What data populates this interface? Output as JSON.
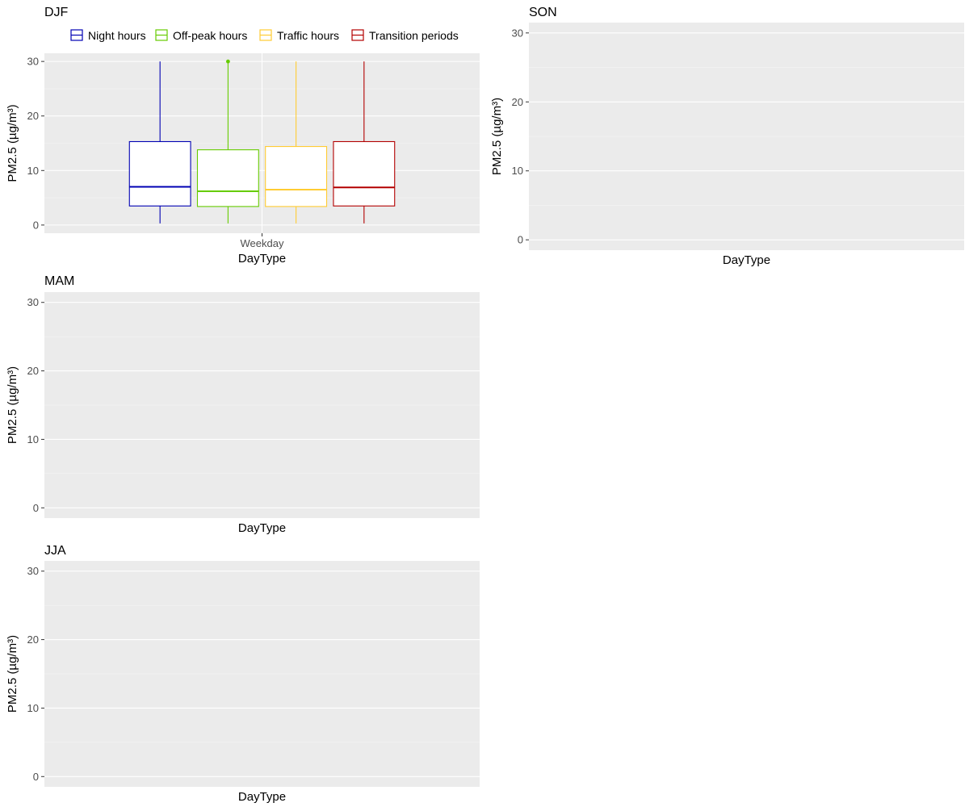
{
  "chart_data": {
    "type": "box",
    "ylabel": "PM2.5 (µg/m³)",
    "xlabel": "DayType",
    "legend": {
      "position": "top",
      "entries": [
        {
          "name": "Night hours",
          "color": "#0000b3"
        },
        {
          "name": "Off-peak hours",
          "color": "#66cc00"
        },
        {
          "name": "Traffic hours",
          "color": "#ffcc33"
        },
        {
          "name": "Transition periods",
          "color": "#b30000"
        }
      ]
    },
    "ylim": [
      -1.5,
      31.5
    ],
    "yticks": [
      0,
      10,
      20,
      30
    ],
    "grid": true,
    "panels": [
      {
        "title": "DJF",
        "categories": [
          "Weekday"
        ],
        "series": [
          {
            "name": "Night hours",
            "color": "#0000b3",
            "min": 0.3,
            "q1": 3.5,
            "median": 7.0,
            "q3": 15.3,
            "max": 30.0,
            "outliers": []
          },
          {
            "name": "Off-peak hours",
            "color": "#66cc00",
            "min": 0.3,
            "q1": 3.4,
            "median": 6.2,
            "q3": 13.8,
            "max": 30.0,
            "outliers": [
              30.0
            ]
          },
          {
            "name": "Traffic hours",
            "color": "#ffcc33",
            "min": 0.3,
            "q1": 3.4,
            "median": 6.5,
            "q3": 14.4,
            "max": 30.0,
            "outliers": []
          },
          {
            "name": "Transition periods",
            "color": "#b30000",
            "min": 0.3,
            "q1": 3.5,
            "median": 6.9,
            "q3": 15.3,
            "max": 30.0,
            "outliers": []
          }
        ]
      },
      {
        "title": "SON",
        "categories": [],
        "series": []
      },
      {
        "title": "MAM",
        "categories": [],
        "series": []
      },
      {
        "title": "JJA",
        "categories": [],
        "series": []
      }
    ]
  }
}
